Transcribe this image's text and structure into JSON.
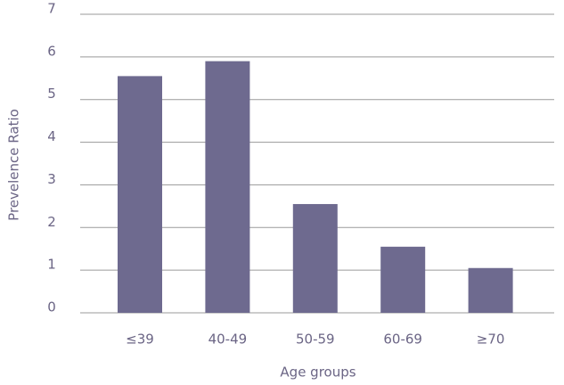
{
  "chart_data": {
    "type": "bar",
    "categories": [
      "≤39",
      "40-49",
      "50-59",
      "60-69",
      "≥70"
    ],
    "values": [
      5.55,
      5.9,
      2.55,
      1.55,
      1.05
    ],
    "color": "#6e6a8f",
    "ylim": [
      0,
      7
    ],
    "yticks": [
      0,
      1,
      2,
      3,
      4,
      5,
      6,
      7
    ],
    "grid": true,
    "xlabel": "Age groups",
    "ylabel": "Prevelence Ratio"
  }
}
